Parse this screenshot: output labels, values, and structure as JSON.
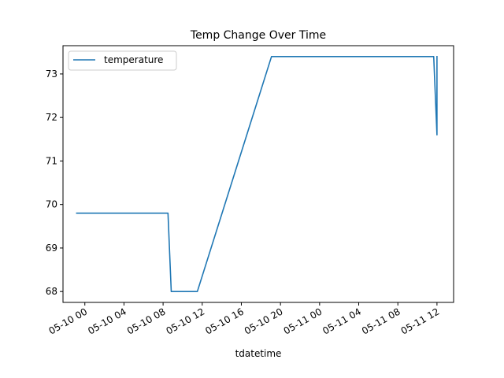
{
  "chart_data": {
    "type": "line",
    "title": "Temp Change Over Time",
    "xlabel": "tdatetime",
    "ylabel": "",
    "legend": {
      "placement": "upper-left",
      "entries": [
        "temperature"
      ]
    },
    "grid": false,
    "colors": {
      "series": "#1f77b4"
    },
    "xlim": [
      "2022-05-09 21:46",
      "2022-05-11 13:42"
    ],
    "ylim": [
      67.75,
      73.65
    ],
    "x_ticks": [
      {
        "t": "2022-05-10 00:00",
        "label": "05-10 00"
      },
      {
        "t": "2022-05-10 04:00",
        "label": "05-10 04"
      },
      {
        "t": "2022-05-10 08:00",
        "label": "05-10 08"
      },
      {
        "t": "2022-05-10 12:00",
        "label": "05-10 12"
      },
      {
        "t": "2022-05-10 16:00",
        "label": "05-10 16"
      },
      {
        "t": "2022-05-10 20:00",
        "label": "05-10 20"
      },
      {
        "t": "2022-05-11 00:00",
        "label": "05-11 00"
      },
      {
        "t": "2022-05-11 04:00",
        "label": "05-11 04"
      },
      {
        "t": "2022-05-11 08:00",
        "label": "05-11 08"
      },
      {
        "t": "2022-05-11 12:00",
        "label": "05-11 12"
      }
    ],
    "y_ticks": [
      68,
      69,
      70,
      71,
      72,
      73
    ],
    "series": [
      {
        "name": "temperature",
        "points": [
          {
            "x": "2022-05-09 23:10",
            "y": 69.8
          },
          {
            "x": "2022-05-10 08:30",
            "y": 69.8
          },
          {
            "x": "2022-05-10 08:50",
            "y": 68.0
          },
          {
            "x": "2022-05-10 11:30",
            "y": 68.0
          },
          {
            "x": "2022-05-10 19:05",
            "y": 73.4
          },
          {
            "x": "2022-05-11 11:40",
            "y": 73.4
          },
          {
            "x": "2022-05-11 12:00",
            "y": 71.6
          },
          {
            "x": "2022-05-11 12:00",
            "y": 73.4
          }
        ]
      }
    ]
  }
}
